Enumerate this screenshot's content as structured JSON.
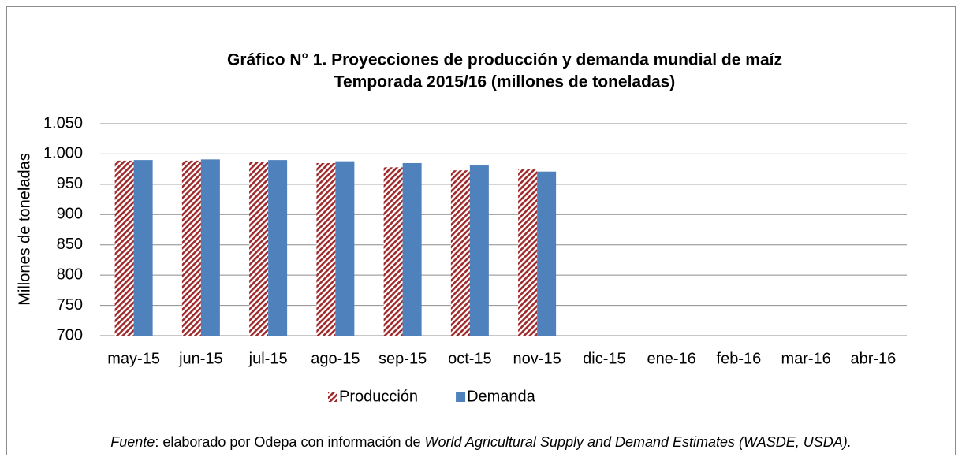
{
  "chart_data": {
    "type": "bar",
    "title": "Gráfico N° 1. Proyecciones de producción y demanda mundial de maíz",
    "subtitle": "Temporada 2015/16 (millones de toneladas)",
    "y_label": "Millones de toneladas",
    "categories": [
      "may-15",
      "jun-15",
      "jul-15",
      "ago-15",
      "sep-15",
      "oct-15",
      "nov-15",
      "dic-15",
      "ene-16",
      "feb-16",
      "mar-16",
      "abr-16"
    ],
    "series": [
      {
        "name": "Producción",
        "color": "#9e2a2b",
        "hatch": true,
        "values": [
          989,
          989,
          987,
          985,
          978,
          973,
          975,
          null,
          null,
          null,
          null,
          null
        ]
      },
      {
        "name": "Demanda",
        "color": "#4f81bd",
        "hatch": false,
        "values": [
          990,
          991,
          990,
          988,
          985,
          981,
          971,
          null,
          null,
          null,
          null,
          null
        ]
      }
    ],
    "ylim": [
      700,
      1050
    ],
    "yticks": [
      700,
      750,
      800,
      850,
      900,
      950,
      {
        "value": 1000,
        "label": "1.000"
      },
      {
        "value": 1050,
        "label": "1.050"
      }
    ],
    "grid": true,
    "legend": "bottom",
    "source": [
      "Fuente",
      ": elaborado por Odepa con información de ",
      "World Agricultural Supply and Demand Estimates (WASDE, USDA)."
    ]
  }
}
